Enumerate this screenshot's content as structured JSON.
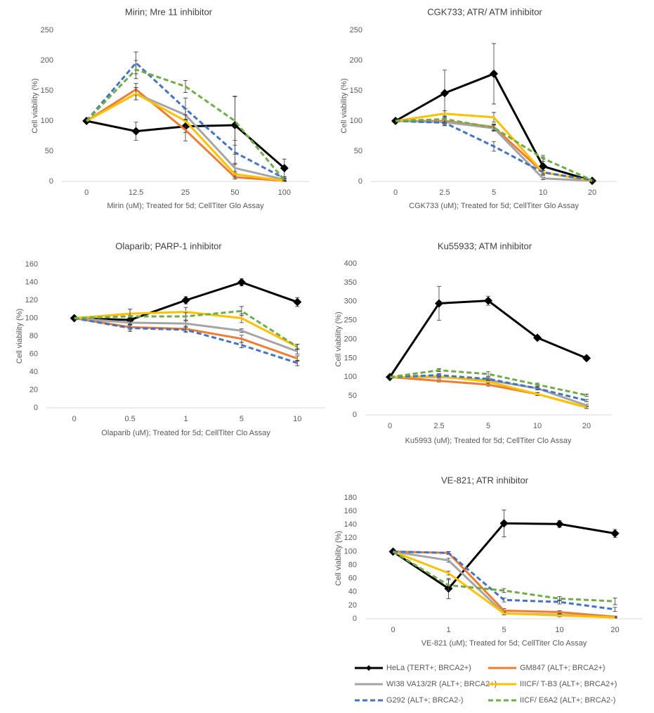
{
  "chart_data": [
    {
      "type": "line",
      "title": "Mirin; Mre 11  inhibitor",
      "x_label": "Mirin (uM); Treated  for 5d; CellTiter Glo Assay",
      "y_label": "Cell viability (%)",
      "categories": [
        "0",
        "12.5",
        "25",
        "50",
        "100"
      ],
      "ylim": [
        0,
        250
      ],
      "yticks": [
        0,
        50,
        100,
        150,
        200,
        250
      ],
      "series": [
        {
          "color": "#000000",
          "marker": "diamond",
          "values": [
            100,
            83,
            91,
            93,
            22
          ],
          "errors": [
            0,
            15,
            10,
            48,
            15
          ]
        },
        {
          "color": "#ed7d31",
          "values": [
            100,
            152,
            85,
            7,
            1
          ],
          "errors": [
            0,
            10,
            18,
            3,
            1
          ]
        },
        {
          "color": "#a5a5a5",
          "values": [
            100,
            145,
            110,
            22,
            3
          ],
          "errors": [
            0,
            10,
            10,
            8,
            2
          ]
        },
        {
          "color": "#ffc000",
          "values": [
            100,
            145,
            100,
            12,
            1
          ],
          "errors": [
            0,
            10,
            10,
            5,
            1
          ]
        },
        {
          "color": "#4472c4",
          "dashed": true,
          "values": [
            100,
            196,
            120,
            48,
            5
          ],
          "errors": [
            0,
            18,
            18,
            20,
            3
          ]
        },
        {
          "color": "#70ad47",
          "dashed": true,
          "values": [
            100,
            185,
            157,
            100,
            2
          ],
          "errors": [
            0,
            15,
            10,
            40,
            2
          ]
        }
      ]
    },
    {
      "type": "line",
      "title": "CGK733; ATR/ ATM inhibitor",
      "x_label": "CGK733 (uM); Treated  for 5d; CellTiter Glo Assay",
      "y_label": "Cell viability (%)",
      "categories": [
        "0",
        "2.5",
        "5",
        "10",
        "20"
      ],
      "ylim": [
        0,
        250
      ],
      "yticks": [
        0,
        50,
        100,
        150,
        200,
        250
      ],
      "series": [
        {
          "color": "#000000",
          "marker": "diamond",
          "values": [
            100,
            146,
            178,
            25,
            1
          ],
          "errors": [
            0,
            38,
            50,
            15,
            2
          ]
        },
        {
          "color": "#ed7d31",
          "values": [
            100,
            100,
            90,
            15,
            1
          ],
          "errors": [
            0,
            5,
            5,
            3,
            1
          ]
        },
        {
          "color": "#a5a5a5",
          "values": [
            100,
            98,
            88,
            5,
            1
          ],
          "errors": [
            0,
            5,
            5,
            2,
            1
          ]
        },
        {
          "color": "#ffc000",
          "values": [
            100,
            112,
            106,
            15,
            1
          ],
          "errors": [
            0,
            5,
            8,
            3,
            1
          ]
        },
        {
          "color": "#4472c4",
          "dashed": true,
          "values": [
            100,
            97,
            58,
            15,
            2
          ],
          "errors": [
            0,
            5,
            8,
            3,
            1
          ]
        },
        {
          "color": "#70ad47",
          "dashed": true,
          "values": [
            100,
            103,
            89,
            38,
            2
          ],
          "errors": [
            0,
            5,
            5,
            5,
            1
          ]
        }
      ]
    },
    {
      "type": "line",
      "title": "Olaparib; PARP-1 inhibitor",
      "x_label": "Olaparib (uM); Treated  for 5d; CellTiter Clo Assay",
      "y_label": "Cell viability (%)",
      "categories": [
        "0",
        "0.5",
        "1",
        "5",
        "10"
      ],
      "ylim": [
        0,
        160
      ],
      "yticks": [
        0,
        20,
        40,
        60,
        80,
        100,
        120,
        140,
        160
      ],
      "series": [
        {
          "color": "#000000",
          "marker": "diamond",
          "values": [
            100,
            98,
            120,
            140,
            118
          ],
          "errors": [
            0,
            5,
            4,
            4,
            5
          ]
        },
        {
          "color": "#ed7d31",
          "values": [
            100,
            90,
            88,
            77,
            55
          ],
          "errors": [
            0,
            3,
            3,
            4,
            3
          ]
        },
        {
          "color": "#a5a5a5",
          "values": [
            100,
            95,
            94,
            86,
            63
          ],
          "errors": [
            0,
            3,
            3,
            2,
            3
          ]
        },
        {
          "color": "#ffc000",
          "values": [
            100,
            105,
            107,
            100,
            68
          ],
          "errors": [
            0,
            5,
            5,
            5,
            3
          ]
        },
        {
          "color": "#4472c4",
          "dashed": true,
          "values": [
            100,
            89,
            87,
            70,
            50
          ],
          "errors": [
            0,
            4,
            3,
            3,
            3
          ]
        },
        {
          "color": "#70ad47",
          "dashed": true,
          "values": [
            100,
            102,
            102,
            108,
            68
          ],
          "errors": [
            0,
            8,
            4,
            5,
            3
          ]
        }
      ]
    },
    {
      "type": "line",
      "title": "Ku55933; ATM inhibitor",
      "x_label": "Ku5993 (uM); Treated  for 5d; CellTiter Clo Assay",
      "y_label": "Cell viability (%)",
      "categories": [
        "0",
        "2.5",
        "5",
        "10",
        "20"
      ],
      "ylim": [
        0,
        400
      ],
      "yticks": [
        0,
        50,
        100,
        150,
        200,
        250,
        300,
        350,
        400
      ],
      "series": [
        {
          "color": "#000000",
          "marker": "diamond",
          "values": [
            100,
            295,
            302,
            204,
            150
          ],
          "errors": [
            0,
            45,
            12,
            6,
            6
          ]
        },
        {
          "color": "#ed7d31",
          "values": [
            100,
            90,
            80,
            55,
            20
          ],
          "errors": [
            0,
            3,
            4,
            4,
            3
          ]
        },
        {
          "color": "#a5a5a5",
          "values": [
            100,
            100,
            92,
            70,
            25
          ],
          "errors": [
            0,
            3,
            4,
            4,
            3
          ]
        },
        {
          "color": "#ffc000",
          "values": [
            100,
            102,
            88,
            55,
            20
          ],
          "errors": [
            0,
            3,
            4,
            4,
            3
          ]
        },
        {
          "color": "#4472c4",
          "dashed": true,
          "values": [
            100,
            105,
            95,
            70,
            38
          ],
          "errors": [
            0,
            4,
            4,
            4,
            3
          ]
        },
        {
          "color": "#70ad47",
          "dashed": true,
          "values": [
            100,
            118,
            108,
            80,
            52
          ],
          "errors": [
            0,
            4,
            6,
            4,
            3
          ]
        }
      ]
    },
    {
      "type": "line",
      "title": "VE-821; ATR inhibitor",
      "x_label": "VE-821 (uM);  Treated  for 5d; CellTiter Clo Assay",
      "y_label": "Cell viability (%)",
      "categories": [
        "0",
        "1",
        "5",
        "10",
        "20"
      ],
      "ylim": [
        0,
        180
      ],
      "yticks": [
        0,
        20,
        40,
        60,
        80,
        100,
        120,
        140,
        160,
        180
      ],
      "series": [
        {
          "name": "HeLa (TERT+; BRCA2+)",
          "color": "#000000",
          "marker": "diamond",
          "values": [
            100,
            45,
            142,
            141,
            127
          ],
          "errors": [
            0,
            15,
            20,
            5,
            6
          ]
        },
        {
          "name": "GM847 (ALT+; BRCA2+)",
          "color": "#ed7d31",
          "values": [
            100,
            98,
            12,
            10,
            3
          ],
          "errors": [
            0,
            2,
            3,
            2,
            1
          ]
        },
        {
          "name": "WI38 VA13/2R (ALT+; BRCA2+)",
          "color": "#a5a5a5",
          "values": [
            100,
            87,
            8,
            6,
            2
          ],
          "errors": [
            0,
            3,
            2,
            2,
            1
          ]
        },
        {
          "name": "IIICF/ T-B3 (ALT+; BRCA2+)",
          "color": "#ffc000",
          "values": [
            100,
            68,
            8,
            5,
            2
          ],
          "errors": [
            0,
            3,
            2,
            2,
            1
          ]
        },
        {
          "name": "G292 (ALT+; BRCA2-)",
          "color": "#4472c4",
          "dashed": true,
          "values": [
            100,
            98,
            28,
            25,
            14
          ],
          "errors": [
            0,
            2,
            3,
            3,
            3
          ]
        },
        {
          "name": "IICF/ E6A2 (ALT+; BRCA2-)",
          "color": "#70ad47",
          "dashed": true,
          "values": [
            100,
            50,
            42,
            30,
            26
          ],
          "errors": [
            0,
            8,
            3,
            3,
            5
          ]
        }
      ]
    }
  ]
}
